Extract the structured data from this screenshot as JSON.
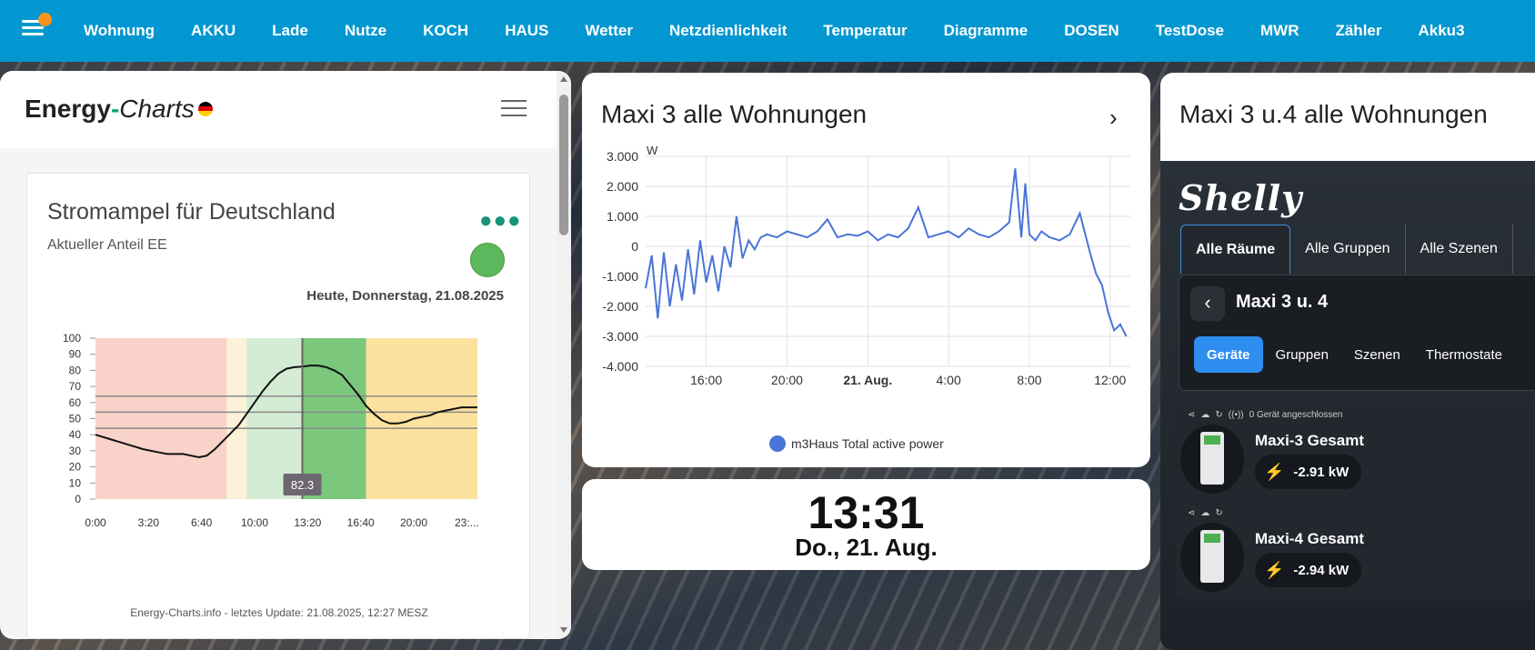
{
  "nav": {
    "tabs": [
      "Wohnung",
      "AKKU",
      "Lade",
      "Nutze",
      "KOCH",
      "HAUS",
      "Wetter",
      "Netzdienlichkeit",
      "Temperatur",
      "Diagramme",
      "DOSEN",
      "TestDose",
      "MWR",
      "Zähler",
      "Akku3"
    ]
  },
  "energy_charts": {
    "logo_main": "Energy",
    "logo_dash": "-",
    "logo_italic": "Charts",
    "title": "Stromampel für Deutschland",
    "subtitle": "Aktueller Anteil EE",
    "light_color": "#5cb85c",
    "date": "Heute, Donnerstag, 21.08.2025",
    "footer": "Energy-Charts.info - letztes Update: 21.08.2025, 12:27 MESZ",
    "chart_data": {
      "type": "line",
      "x_ticks": [
        "0:00",
        "3:20",
        "6:40",
        "10:00",
        "13:20",
        "16:40",
        "20:00",
        "23:..."
      ],
      "y_ticks": [
        "0",
        "10",
        "20",
        "30",
        "40",
        "50",
        "60",
        "70",
        "80",
        "90",
        "100"
      ],
      "ylim": [
        0,
        100
      ],
      "xlim": [
        0,
        24
      ],
      "bands": [
        {
          "from": 0,
          "to": 8.25,
          "color": "#f9d3c9"
        },
        {
          "from": 8.25,
          "to": 9.5,
          "color": "#fbf2d7"
        },
        {
          "from": 9.5,
          "to": 13.0,
          "color": "#d4ecd3"
        },
        {
          "from": 13.0,
          "to": 17.0,
          "color": "#7bc77b"
        },
        {
          "from": 17.0,
          "to": 24,
          "color": "#fce29e"
        }
      ],
      "hlines": [
        44,
        54,
        64
      ],
      "cursor": {
        "x": 13.0,
        "label": "82.3"
      },
      "series": [
        {
          "x": [
            0,
            1,
            2,
            3,
            4,
            4.5,
            5,
            5.5,
            6,
            6.5,
            7,
            7.5,
            8,
            8.5,
            9,
            9.5,
            10,
            10.5,
            11,
            11.5,
            12,
            12.5,
            13,
            13.5,
            14,
            14.5,
            15,
            15.5,
            16,
            16.5,
            17,
            17.5,
            18,
            18.5,
            19,
            19.5,
            20,
            20.5,
            21,
            21.5,
            22,
            22.5,
            23,
            23.5,
            24
          ],
          "y": [
            40,
            37,
            34,
            31,
            29,
            28,
            28,
            28,
            27,
            26,
            27,
            31,
            36,
            41,
            46,
            53,
            60,
            67,
            73,
            78,
            81,
            82,
            82.3,
            83,
            83,
            82,
            80,
            77,
            71,
            65,
            58,
            53,
            49,
            47,
            47,
            48,
            50,
            51,
            52,
            54,
            55,
            56,
            57,
            57,
            57
          ]
        }
      ]
    }
  },
  "power_chart": {
    "title": "Maxi 3 alle Wohnungen",
    "unit": "W",
    "legend": "m3Haus Total active power",
    "line_color": "#4a74d8",
    "chart_data": {
      "type": "line",
      "y_ticks": [
        "3.000",
        "2.000",
        "1.000",
        "0",
        "-1.000",
        "-2.000",
        "-3.000",
        "-4.000"
      ],
      "ylim": [
        -4000,
        3000
      ],
      "x_ticks": [
        {
          "label": "16:00",
          "t": 16
        },
        {
          "label": "20:00",
          "t": 20
        },
        {
          "label": "21. Aug.",
          "t": 24
        },
        {
          "label": "4:00",
          "t": 28
        },
        {
          "label": "8:00",
          "t": 32
        },
        {
          "label": "12:00",
          "t": 36
        }
      ],
      "xlim": [
        13.0,
        37.0
      ],
      "series": [
        {
          "name": "m3Haus Total active power",
          "x": [
            13.0,
            13.3,
            13.6,
            13.9,
            14.2,
            14.5,
            14.8,
            15.1,
            15.4,
            15.7,
            16.0,
            16.3,
            16.6,
            16.9,
            17.2,
            17.5,
            17.8,
            18.1,
            18.4,
            18.7,
            19.0,
            19.5,
            20.0,
            20.5,
            21.0,
            21.5,
            22.0,
            22.5,
            23.0,
            23.5,
            24.0,
            24.5,
            25.0,
            25.5,
            26.0,
            26.5,
            27.0,
            27.5,
            28.0,
            28.5,
            29.0,
            29.5,
            30.0,
            30.5,
            31.0,
            31.3,
            31.6,
            31.8,
            32.0,
            32.3,
            32.6,
            33.0,
            33.5,
            34.0,
            34.5,
            35.0,
            35.3,
            35.6,
            35.9,
            36.2,
            36.5,
            36.8
          ],
          "y": [
            -1400,
            -300,
            -2400,
            -200,
            -2000,
            -600,
            -1800,
            -100,
            -1600,
            200,
            -1200,
            -300,
            -1500,
            0,
            -700,
            1000,
            -400,
            200,
            -100,
            300,
            400,
            300,
            500,
            400,
            300,
            500,
            900,
            300,
            400,
            350,
            500,
            200,
            400,
            300,
            600,
            1300,
            300,
            400,
            500,
            300,
            600,
            400,
            300,
            500,
            800,
            2600,
            300,
            2100,
            400,
            200,
            500,
            300,
            200,
            400,
            1100,
            -200,
            -900,
            -1300,
            -2200,
            -2800,
            -2600,
            -3000
          ]
        }
      ]
    }
  },
  "clock": {
    "time": "13:31",
    "date": "Do., 21. Aug."
  },
  "shelly": {
    "title": "Maxi 3 u.4 alle Wohnungen",
    "logo": "Shelly",
    "tabs": [
      "Alle Räume",
      "Alle Gruppen",
      "Alle Szenen"
    ],
    "room": "Maxi 3 u. 4",
    "subtabs": [
      "Geräte",
      "Gruppen",
      "Szenen",
      "Thermostate"
    ],
    "devices": [
      {
        "status": "0 Gerät angeschlossen",
        "name": "Maxi-3 Gesamt",
        "power": "-2.91 kW"
      },
      {
        "status": "",
        "name": "Maxi-4 Gesamt",
        "power": "-2.94 kW"
      }
    ]
  }
}
